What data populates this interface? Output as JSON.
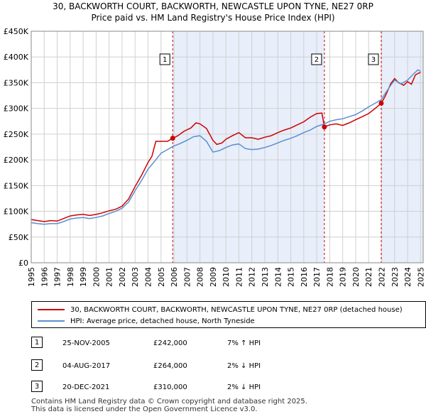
{
  "title_line1": "30, BACKWORTH COURT, BACKWORTH, NEWCASTLE UPON TYNE, NE27 0RP",
  "title_line2": "Price paid vs. HM Land Registry's House Price Index (HPI)",
  "legend": [
    {
      "label": "30, BACKWORTH COURT, BACKWORTH, NEWCASTLE UPON TYNE, NE27 0RP (detached house)",
      "color": "#cc0000"
    },
    {
      "label": "HPI: Average price, detached house, North Tyneside",
      "color": "#5b8fd1"
    }
  ],
  "transactions": [
    {
      "num": "1",
      "date": "25-NOV-2005",
      "price": "£242,000",
      "hpi": "7% ↑ HPI"
    },
    {
      "num": "2",
      "date": "04-AUG-2017",
      "price": "£264,000",
      "hpi": "2% ↓ HPI"
    },
    {
      "num": "3",
      "date": "20-DEC-2021",
      "price": "£310,000",
      "hpi": "2% ↓ HPI"
    }
  ],
  "footer_line1": "Contains HM Land Registry data © Crown copyright and database right 2025.",
  "footer_line2": "This data is licensed under the Open Government Licence v3.0.",
  "chart_data": {
    "type": "line",
    "title": "Price paid vs. HM Land Registry's House Price Index (HPI)",
    "xlabel": "",
    "ylabel": "",
    "xlim": [
      1995,
      2025.2
    ],
    "ylim": [
      0,
      450000
    ],
    "x_ticks": [
      "1995",
      "1996",
      "1997",
      "1998",
      "1999",
      "2000",
      "2001",
      "2002",
      "2003",
      "2004",
      "2005",
      "2006",
      "2007",
      "2008",
      "2009",
      "2010",
      "2011",
      "2012",
      "2013",
      "2014",
      "2015",
      "2016",
      "2017",
      "2018",
      "2019",
      "2020",
      "2021",
      "2022",
      "2023",
      "2024",
      "2025"
    ],
    "y_ticks": [
      {
        "value": 0,
        "label": "£0"
      },
      {
        "value": 50000,
        "label": "£50K"
      },
      {
        "value": 100000,
        "label": "£100K"
      },
      {
        "value": 150000,
        "label": "£150K"
      },
      {
        "value": 200000,
        "label": "£200K"
      },
      {
        "value": 250000,
        "label": "£250K"
      },
      {
        "value": 300000,
        "label": "£300K"
      },
      {
        "value": 350000,
        "label": "£350K"
      },
      {
        "value": 400000,
        "label": "£400K"
      },
      {
        "value": 450000,
        "label": "£450K"
      }
    ],
    "grid": true,
    "shaded_ranges": [
      [
        2005.9,
        2017.59
      ],
      [
        2021.97,
        2025.2
      ]
    ],
    "markers": [
      {
        "label": "1",
        "x": 2005.9,
        "y": 242000
      },
      {
        "label": "2",
        "x": 2017.59,
        "y": 264000
      },
      {
        "label": "3",
        "x": 2021.97,
        "y": 310000
      }
    ],
    "series": [
      {
        "name": "30, BACKWORTH COURT, BACKWORTH, NEWCASTLE UPON TYNE, NE27 0RP (detached house)",
        "color": "#cc0000",
        "points": [
          [
            1995,
            84000
          ],
          [
            1995.5,
            82000
          ],
          [
            1996,
            80000
          ],
          [
            1996.5,
            82000
          ],
          [
            1997,
            81000
          ],
          [
            1997.5,
            86000
          ],
          [
            1998,
            91000
          ],
          [
            1998.5,
            93000
          ],
          [
            1999,
            94000
          ],
          [
            1999.5,
            92000
          ],
          [
            2000,
            94000
          ],
          [
            2000.5,
            97000
          ],
          [
            2001,
            101000
          ],
          [
            2001.5,
            104000
          ],
          [
            2002,
            110000
          ],
          [
            2002.5,
            124000
          ],
          [
            2003,
            148000
          ],
          [
            2003.5,
            170000
          ],
          [
            2004,
            195000
          ],
          [
            2004.3,
            207000
          ],
          [
            2004.6,
            236000
          ],
          [
            2005,
            236000
          ],
          [
            2005.5,
            236000
          ],
          [
            2005.9,
            242000
          ],
          [
            2006.3,
            247000
          ],
          [
            2006.8,
            256000
          ],
          [
            2007.3,
            262000
          ],
          [
            2007.7,
            272000
          ],
          [
            2008,
            270000
          ],
          [
            2008.5,
            261000
          ],
          [
            2009,
            238000
          ],
          [
            2009.3,
            230000
          ],
          [
            2009.7,
            233000
          ],
          [
            2010,
            240000
          ],
          [
            2010.5,
            247000
          ],
          [
            2011,
            253000
          ],
          [
            2011.5,
            243000
          ],
          [
            2012,
            243000
          ],
          [
            2012.5,
            240000
          ],
          [
            2013,
            244000
          ],
          [
            2013.5,
            247000
          ],
          [
            2014,
            253000
          ],
          [
            2014.5,
            258000
          ],
          [
            2015,
            262000
          ],
          [
            2015.5,
            268000
          ],
          [
            2016,
            274000
          ],
          [
            2016.5,
            283000
          ],
          [
            2017,
            290000
          ],
          [
            2017.4,
            291000
          ],
          [
            2017.59,
            264000
          ],
          [
            2018,
            268000
          ],
          [
            2018.5,
            270000
          ],
          [
            2019,
            267000
          ],
          [
            2019.5,
            272000
          ],
          [
            2020,
            278000
          ],
          [
            2020.5,
            284000
          ],
          [
            2021,
            290000
          ],
          [
            2021.5,
            300000
          ],
          [
            2021.97,
            310000
          ],
          [
            2022.3,
            325000
          ],
          [
            2022.7,
            348000
          ],
          [
            2023,
            358000
          ],
          [
            2023.3,
            350000
          ],
          [
            2023.7,
            345000
          ],
          [
            2024,
            352000
          ],
          [
            2024.3,
            347000
          ],
          [
            2024.6,
            365000
          ],
          [
            2024.8,
            368000
          ],
          [
            2025,
            370000
          ]
        ]
      },
      {
        "name": "HPI: Average price, detached house, North Tyneside",
        "color": "#5b8fd1",
        "points": [
          [
            1995,
            78000
          ],
          [
            1995.5,
            76000
          ],
          [
            1996,
            75000
          ],
          [
            1996.5,
            76000
          ],
          [
            1997,
            76000
          ],
          [
            1997.5,
            80000
          ],
          [
            1998,
            85000
          ],
          [
            1998.5,
            87000
          ],
          [
            1999,
            88000
          ],
          [
            1999.5,
            86000
          ],
          [
            2000,
            88000
          ],
          [
            2000.5,
            91000
          ],
          [
            2001,
            96000
          ],
          [
            2001.5,
            100000
          ],
          [
            2002,
            106000
          ],
          [
            2002.5,
            118000
          ],
          [
            2003,
            140000
          ],
          [
            2003.5,
            160000
          ],
          [
            2004,
            182000
          ],
          [
            2004.5,
            197000
          ],
          [
            2005,
            213000
          ],
          [
            2005.5,
            220000
          ],
          [
            2005.9,
            226000
          ],
          [
            2006.5,
            232000
          ],
          [
            2007,
            238000
          ],
          [
            2007.5,
            245000
          ],
          [
            2008,
            247000
          ],
          [
            2008.5,
            236000
          ],
          [
            2009,
            215000
          ],
          [
            2009.5,
            218000
          ],
          [
            2010,
            224000
          ],
          [
            2010.5,
            229000
          ],
          [
            2011,
            231000
          ],
          [
            2011.5,
            222000
          ],
          [
            2012,
            220000
          ],
          [
            2012.5,
            221000
          ],
          [
            2013,
            224000
          ],
          [
            2013.5,
            228000
          ],
          [
            2014,
            233000
          ],
          [
            2014.5,
            238000
          ],
          [
            2015,
            242000
          ],
          [
            2015.5,
            247000
          ],
          [
            2016,
            253000
          ],
          [
            2016.5,
            258000
          ],
          [
            2017,
            265000
          ],
          [
            2017.59,
            270000
          ],
          [
            2018,
            275000
          ],
          [
            2018.5,
            278000
          ],
          [
            2019,
            280000
          ],
          [
            2019.5,
            284000
          ],
          [
            2020,
            288000
          ],
          [
            2020.5,
            295000
          ],
          [
            2021,
            303000
          ],
          [
            2021.5,
            310000
          ],
          [
            2021.97,
            317000
          ],
          [
            2022.3,
            330000
          ],
          [
            2022.7,
            345000
          ],
          [
            2023,
            355000
          ],
          [
            2023.5,
            348000
          ],
          [
            2024,
            355000
          ],
          [
            2024.5,
            368000
          ],
          [
            2024.8,
            375000
          ],
          [
            2025,
            372000
          ]
        ]
      }
    ]
  }
}
